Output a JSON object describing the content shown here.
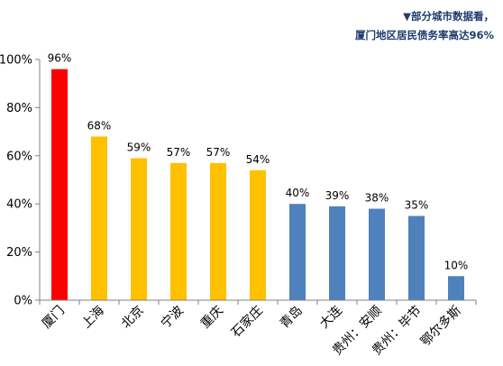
{
  "annotation": {
    "line1": "▼部分城市数据看，",
    "line2": "厦门地区居民债务率高达96%"
  },
  "colors": {
    "red": "#ff0000",
    "yellow": "#ffc000",
    "blue": "#4f81bd",
    "axis": "#808080"
  },
  "chart_data": {
    "type": "bar",
    "title": "",
    "xlabel": "",
    "ylabel": "",
    "ylim": [
      0,
      1.0
    ],
    "yticks": [
      0,
      0.2,
      0.4,
      0.6,
      0.8,
      1.0
    ],
    "ytick_labels": [
      "0%",
      "20%",
      "40%",
      "60%",
      "80%",
      "100%"
    ],
    "grid": false,
    "legend": "none",
    "categories": [
      "厦门",
      "上海",
      "北京",
      "宁波",
      "重庆",
      "石家庄",
      "青岛",
      "大连",
      "贵州：安顺",
      "贵州：毕节",
      "鄂尔多斯"
    ],
    "values": [
      0.96,
      0.68,
      0.59,
      0.57,
      0.57,
      0.54,
      0.4,
      0.39,
      0.38,
      0.35,
      0.1
    ],
    "value_labels": [
      "96%",
      "68%",
      "59%",
      "57%",
      "57%",
      "54%",
      "40%",
      "39%",
      "38%",
      "35%",
      "10%"
    ],
    "bar_colors": [
      "#ff0000",
      "#ffc000",
      "#ffc000",
      "#ffc000",
      "#ffc000",
      "#ffc000",
      "#4f81bd",
      "#4f81bd",
      "#4f81bd",
      "#4f81bd",
      "#4f81bd"
    ]
  }
}
